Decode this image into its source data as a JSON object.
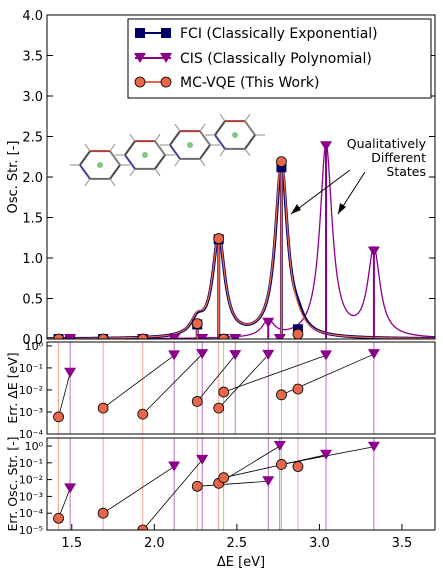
{
  "chart_data": [
    {
      "type": "line",
      "panel": "top",
      "ylabel": "Osc. Str. [-]",
      "xlim": [
        1.35,
        3.7
      ],
      "ylim": [
        0,
        4.0
      ],
      "yticks": [
        "0.0",
        "0.5",
        "1.0",
        "1.5",
        "2.0",
        "2.5",
        "3.0",
        "3.5",
        "4.0"
      ],
      "grid": false,
      "legend_position": "top-right",
      "annotation": [
        "Qualitatively",
        "Different",
        "States"
      ],
      "inset_image": "molecular-aggregate-structure",
      "series": [
        {
          "name": "FCI (Classically Exponential)",
          "color": "#000066",
          "marker": "square",
          "sticks": [
            [
              1.42,
              0.0
            ],
            [
              1.49,
              0.0
            ],
            [
              1.69,
              0.0
            ],
            [
              2.26,
              0.18
            ],
            [
              2.39,
              1.23
            ],
            [
              2.42,
              0.0
            ],
            [
              2.77,
              2.12
            ],
            [
              2.87,
              0.12
            ]
          ]
        },
        {
          "name": "CIS (Classically Polynomial)",
          "color": "#8b008b",
          "marker": "triangle-down",
          "sticks": [
            [
              1.49,
              0.0
            ],
            [
              1.93,
              0.0
            ],
            [
              2.12,
              0.0
            ],
            [
              2.29,
              0.0
            ],
            [
              2.49,
              0.0
            ],
            [
              2.69,
              0.2
            ],
            [
              2.76,
              0.0
            ],
            [
              3.04,
              2.38
            ],
            [
              3.33,
              1.08
            ]
          ]
        },
        {
          "name": "MC-VQE (This Work)",
          "color": "#e8664a",
          "marker": "circle",
          "sticks": [
            [
              1.42,
              0.0
            ],
            [
              1.69,
              0.0
            ],
            [
              1.93,
              0.0
            ],
            [
              2.26,
              0.19
            ],
            [
              2.39,
              1.24
            ],
            [
              2.42,
              0.0
            ],
            [
              2.77,
              2.19
            ],
            [
              2.87,
              0.06
            ]
          ]
        }
      ]
    },
    {
      "type": "scatter",
      "panel": "middle",
      "ylabel": "Err. ΔE [eV]",
      "yscale": "log",
      "ylim": [
        0.0001,
        1.5
      ],
      "yticks": [
        "10⁰",
        "10⁻¹",
        "10⁻²",
        "10⁻³",
        "10⁻⁴"
      ],
      "series": [
        {
          "name": "CIS",
          "marker": "triangle-down",
          "x": [
            1.49,
            2.12,
            2.29,
            2.49,
            2.69,
            3.04,
            3.33
          ],
          "y": [
            0.06,
            0.37,
            0.42,
            0.38,
            0.39,
            0.37,
            0.42
          ]
        },
        {
          "name": "MC-VQE",
          "marker": "circle",
          "x": [
            1.42,
            1.69,
            1.93,
            2.26,
            2.39,
            2.42,
            2.77,
            2.87
          ],
          "y": [
            0.0006,
            0.0015,
            0.0008,
            0.003,
            0.0015,
            0.008,
            0.006,
            0.011
          ]
        }
      ]
    },
    {
      "type": "scatter",
      "panel": "bottom",
      "ylabel": "Err. Osc. Str. [-]",
      "xlabel": "ΔE [eV]",
      "yscale": "log",
      "ylim": [
        1e-05,
        3
      ],
      "xticks": [
        "1.5",
        "2.0",
        "2.5",
        "3.0",
        "3.5"
      ],
      "yticks": [
        "10⁰",
        "10⁻¹",
        "10⁻²",
        "10⁻³",
        "10⁻⁴",
        "10⁻⁵"
      ],
      "series": [
        {
          "name": "CIS",
          "marker": "triangle-down",
          "x": [
            1.49,
            2.12,
            2.29,
            2.69,
            2.76,
            3.04,
            3.33
          ],
          "y": [
            0.003,
            0.06,
            0.15,
            0.008,
            1.0,
            0.3,
            0.9
          ]
        },
        {
          "name": "MC-VQE",
          "marker": "circle",
          "x": [
            1.42,
            1.69,
            1.93,
            2.26,
            2.39,
            2.42,
            2.77,
            2.87
          ],
          "y": [
            5e-05,
            0.0001,
            1e-05,
            0.004,
            0.006,
            0.013,
            0.08,
            0.06
          ]
        }
      ]
    }
  ]
}
